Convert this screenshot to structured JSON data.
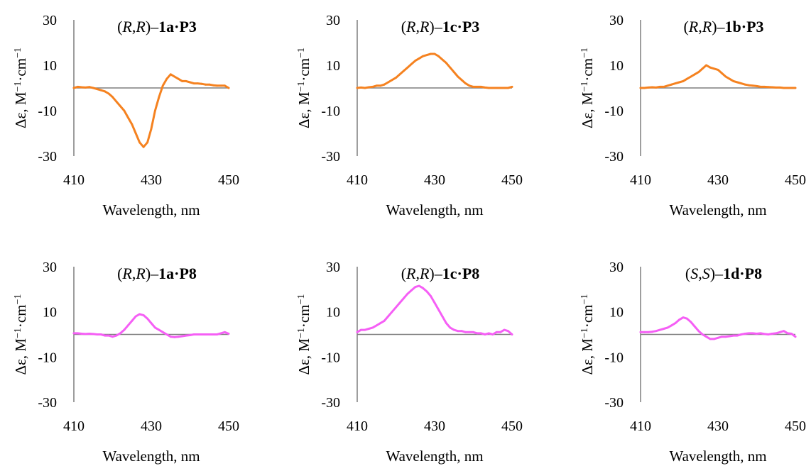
{
  "figure": {
    "panel_count": 6
  },
  "colors": {
    "P3": "#f58220",
    "P8": "#f55ff5",
    "axis": "#7f7f7f"
  },
  "chart_data": [
    {
      "type": "line",
      "title_parts": [
        [
          "(",
          ""
        ],
        [
          "R",
          "i"
        ],
        [
          ",",
          ""
        ],
        [
          "R",
          "i"
        ],
        [
          ")–",
          ""
        ],
        [
          "1a·P3",
          "b"
        ]
      ],
      "xlabel": "Wavelength, nm",
      "ylabel_parts": [
        [
          "Δε, M",
          ""
        ],
        [
          "−1",
          "sup"
        ],
        [
          "·cm",
          ""
        ],
        [
          "−1",
          "sup"
        ]
      ],
      "xlim": [
        410,
        450
      ],
      "ylim": [
        -30,
        30
      ],
      "xticks": [
        "410",
        "430",
        "450"
      ],
      "yticks": [
        "30",
        "10",
        "-10",
        "-30"
      ],
      "color_key": "P3",
      "series": [
        {
          "x": [
            410,
            411,
            412,
            413,
            414,
            415,
            416,
            417,
            418,
            419,
            420,
            421,
            422,
            423,
            424,
            425,
            426,
            427,
            428,
            429,
            430,
            431,
            432,
            433,
            434,
            435,
            436,
            437,
            438,
            439,
            440,
            441,
            442,
            443,
            444,
            445,
            446,
            447,
            448,
            449,
            450
          ],
          "values": [
            0,
            0.5,
            0.3,
            0.2,
            0.4,
            0,
            -0.5,
            -1,
            -1.5,
            -2.5,
            -4,
            -6,
            -8,
            -10,
            -13,
            -16,
            -20,
            -24,
            -26,
            -24,
            -18,
            -10,
            -4,
            1,
            4,
            6,
            5,
            4,
            3,
            3,
            2.5,
            2,
            2,
            1.8,
            1.5,
            1.5,
            1.2,
            1,
            1,
            1,
            0
          ]
        }
      ]
    },
    {
      "type": "line",
      "title_parts": [
        [
          "(",
          ""
        ],
        [
          "R",
          "i"
        ],
        [
          ",",
          ""
        ],
        [
          "R",
          "i"
        ],
        [
          ")–",
          ""
        ],
        [
          "1c·P3",
          "b"
        ]
      ],
      "xlabel": "Wavelength, nm",
      "ylabel_parts": [
        [
          "Δε, M",
          ""
        ],
        [
          "−1",
          "sup"
        ],
        [
          "·cm",
          ""
        ],
        [
          "−1",
          "sup"
        ]
      ],
      "xlim": [
        410,
        450
      ],
      "ylim": [
        -30,
        30
      ],
      "xticks": [
        "410",
        "430",
        "450"
      ],
      "yticks": [
        "30",
        "10",
        "-10",
        "-30"
      ],
      "color_key": "P3",
      "series": [
        {
          "x": [
            410,
            411,
            412,
            413,
            414,
            415,
            416,
            417,
            418,
            419,
            420,
            421,
            422,
            423,
            424,
            425,
            426,
            427,
            428,
            429,
            430,
            431,
            432,
            433,
            434,
            435,
            436,
            437,
            438,
            439,
            440,
            441,
            442,
            443,
            444,
            445,
            446,
            447,
            448,
            449,
            450
          ],
          "values": [
            0,
            0.2,
            0,
            0.3,
            0.5,
            1,
            1,
            1.5,
            2.5,
            3.5,
            4.5,
            6,
            7.5,
            9,
            10.5,
            12,
            13,
            14,
            14.5,
            15,
            15,
            14,
            12.5,
            11,
            9,
            7,
            5,
            3.5,
            2,
            1,
            0.5,
            0.5,
            0.5,
            0.2,
            0,
            0,
            0,
            0,
            0,
            0,
            0.5
          ]
        }
      ]
    },
    {
      "type": "line",
      "title_parts": [
        [
          "(",
          ""
        ],
        [
          "R",
          "i"
        ],
        [
          ",",
          ""
        ],
        [
          "R",
          "i"
        ],
        [
          ")–",
          ""
        ],
        [
          "1b·P3",
          "b"
        ]
      ],
      "xlabel": "Wavelength, nm",
      "ylabel_parts": [
        [
          "Δε, M",
          ""
        ],
        [
          "−1",
          "sup"
        ],
        [
          "·cm",
          ""
        ],
        [
          "−1",
          "sup"
        ]
      ],
      "xlim": [
        410,
        450
      ],
      "ylim": [
        -30,
        30
      ],
      "xticks": [
        "410",
        "430",
        "450"
      ],
      "yticks": [
        "30",
        "10",
        "-10",
        "-30"
      ],
      "color_key": "P3",
      "series": [
        {
          "x": [
            410,
            411,
            412,
            413,
            414,
            415,
            416,
            417,
            418,
            419,
            420,
            421,
            422,
            423,
            424,
            425,
            426,
            427,
            428,
            429,
            430,
            431,
            432,
            433,
            434,
            435,
            436,
            437,
            438,
            439,
            440,
            441,
            442,
            443,
            444,
            445,
            446,
            447,
            448,
            449,
            450
          ],
          "values": [
            0,
            0,
            0.2,
            0.3,
            0.2,
            0.5,
            0.5,
            1,
            1.5,
            2,
            2.5,
            3,
            4,
            5,
            6,
            7,
            8.5,
            10,
            9,
            8.5,
            8,
            6.5,
            5,
            4,
            3,
            2.5,
            2,
            1.5,
            1.2,
            1,
            0.8,
            0.5,
            0.5,
            0.4,
            0.3,
            0.2,
            0.2,
            0,
            0,
            0,
            0
          ]
        }
      ]
    },
    {
      "type": "line",
      "title_parts": [
        [
          "(",
          ""
        ],
        [
          "R",
          "i"
        ],
        [
          ",",
          ""
        ],
        [
          "R",
          "i"
        ],
        [
          ")–",
          ""
        ],
        [
          "1a·P8",
          "b"
        ]
      ],
      "xlabel": "Wavelength, nm",
      "ylabel_parts": [
        [
          "Δε, M",
          ""
        ],
        [
          "−1",
          "sup"
        ],
        [
          "·cm",
          ""
        ],
        [
          "−1",
          "sup"
        ]
      ],
      "xlim": [
        410,
        450
      ],
      "ylim": [
        -30,
        30
      ],
      "xticks": [
        "410",
        "430",
        "450"
      ],
      "yticks": [
        "30",
        "10",
        "-10",
        "-30"
      ],
      "color_key": "P8",
      "series": [
        {
          "x": [
            410,
            411,
            412,
            413,
            414,
            415,
            416,
            417,
            418,
            419,
            420,
            421,
            422,
            423,
            424,
            425,
            426,
            427,
            428,
            429,
            430,
            431,
            432,
            433,
            434,
            435,
            436,
            437,
            438,
            439,
            440,
            441,
            442,
            443,
            444,
            445,
            446,
            447,
            448,
            449,
            450
          ],
          "values": [
            0.5,
            0.5,
            0.3,
            0.2,
            0.3,
            0.2,
            0,
            0,
            -0.5,
            -0.5,
            -1,
            -0.5,
            0.5,
            2,
            4,
            6,
            8,
            9,
            8.5,
            7,
            5,
            3,
            2,
            1,
            0,
            -1,
            -1.2,
            -1,
            -0.8,
            -0.5,
            -0.3,
            0,
            0,
            0,
            0,
            0,
            0,
            0,
            0.5,
            1,
            0.3
          ]
        }
      ]
    },
    {
      "type": "line",
      "title_parts": [
        [
          "(",
          ""
        ],
        [
          "R",
          "i"
        ],
        [
          ",",
          ""
        ],
        [
          "R",
          "i"
        ],
        [
          ")–",
          ""
        ],
        [
          "1c·P8",
          "b"
        ]
      ],
      "xlabel": "Wavelength, nm",
      "ylabel_parts": [
        [
          "Δε, M",
          ""
        ],
        [
          "−1",
          "sup"
        ],
        [
          "·cm",
          ""
        ],
        [
          "−1",
          "sup"
        ]
      ],
      "xlim": [
        410,
        450
      ],
      "ylim": [
        -30,
        30
      ],
      "xticks": [
        "410",
        "430",
        "450"
      ],
      "yticks": [
        "30",
        "10",
        "-10",
        "-30"
      ],
      "color_key": "P8",
      "series": [
        {
          "x": [
            410,
            411,
            412,
            413,
            414,
            415,
            416,
            417,
            418,
            419,
            420,
            421,
            422,
            423,
            424,
            425,
            426,
            427,
            428,
            429,
            430,
            431,
            432,
            433,
            434,
            435,
            436,
            437,
            438,
            439,
            440,
            441,
            442,
            443,
            444,
            445,
            446,
            447,
            448,
            449,
            450
          ],
          "values": [
            1,
            2,
            2,
            2.5,
            3,
            4,
            5,
            6,
            8,
            10,
            12,
            14,
            16,
            18,
            19.5,
            21,
            21.5,
            20.5,
            19,
            17,
            14,
            11,
            8,
            5,
            3,
            2,
            1.5,
            1.5,
            1,
            1,
            1,
            0.5,
            0.5,
            0,
            0.5,
            0,
            1,
            1,
            2,
            1.5,
            0
          ]
        }
      ]
    },
    {
      "type": "line",
      "title_parts": [
        [
          "(",
          ""
        ],
        [
          "S",
          "i"
        ],
        [
          ",",
          ""
        ],
        [
          "S",
          "i"
        ],
        [
          ")–",
          ""
        ],
        [
          "1d·P8",
          "b"
        ]
      ],
      "xlabel": "Wavelength, nm",
      "ylabel_parts": [
        [
          "Δε, M",
          ""
        ],
        [
          "−1",
          "sup"
        ],
        [
          "·cm",
          ""
        ],
        [
          "−1",
          "sup"
        ]
      ],
      "xlim": [
        410,
        450
      ],
      "ylim": [
        -30,
        30
      ],
      "xticks": [
        "410",
        "430",
        "450"
      ],
      "yticks": [
        "30",
        "10",
        "-10",
        "-30"
      ],
      "color_key": "P8",
      "series": [
        {
          "x": [
            410,
            411,
            412,
            413,
            414,
            415,
            416,
            417,
            418,
            419,
            420,
            421,
            422,
            423,
            424,
            425,
            426,
            427,
            428,
            429,
            430,
            431,
            432,
            433,
            434,
            435,
            436,
            437,
            438,
            439,
            440,
            441,
            442,
            443,
            444,
            445,
            446,
            447,
            448,
            449,
            450
          ],
          "values": [
            1,
            1,
            1,
            1.2,
            1.5,
            2,
            2.5,
            3,
            4,
            5,
            6.5,
            7.5,
            7,
            5.5,
            3.5,
            1.5,
            0,
            -1,
            -2,
            -2,
            -1.5,
            -1,
            -1,
            -0.8,
            -0.5,
            -0.5,
            0,
            0.3,
            0.5,
            0.5,
            0.3,
            0.5,
            0.2,
            0,
            0.3,
            0.5,
            1,
            1.5,
            0.5,
            0.3,
            -1
          ]
        }
      ]
    }
  ]
}
